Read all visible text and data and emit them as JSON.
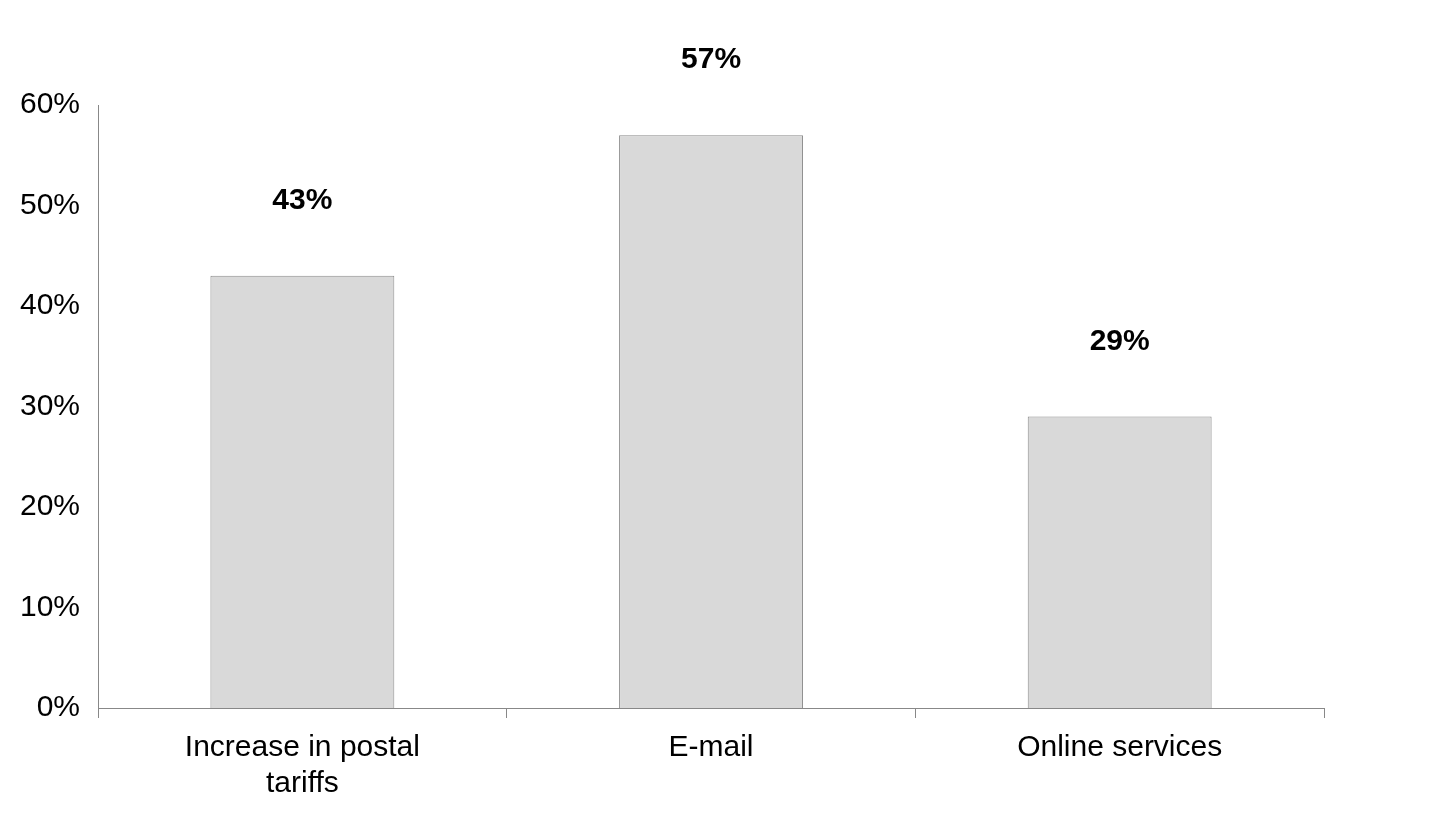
{
  "chart_data": {
    "type": "bar",
    "categories": [
      "Increase in postal tariffs",
      "E-mail",
      "Online services"
    ],
    "values": [
      43,
      57,
      29
    ],
    "color": "#d9d9d9",
    "value_labels": [
      "43%",
      "57%",
      "29%"
    ],
    "ylim": [
      0,
      60
    ],
    "yticks": [
      {
        "value": 0,
        "label": "0%"
      },
      {
        "value": 10,
        "label": "10%"
      },
      {
        "value": 20,
        "label": "20%"
      },
      {
        "value": 30,
        "label": "30%"
      },
      {
        "value": 40,
        "label": "40%"
      },
      {
        "value": 50,
        "label": "50%"
      },
      {
        "value": 60,
        "label": "60%"
      }
    ],
    "grid": false,
    "legend": false
  }
}
